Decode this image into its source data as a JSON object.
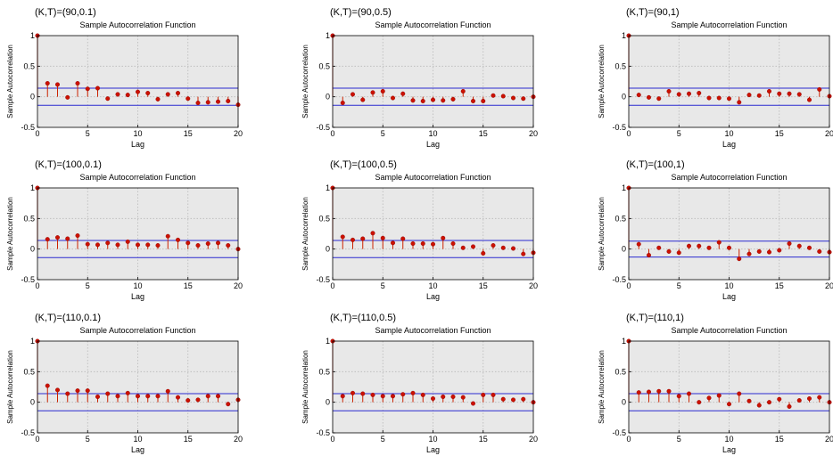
{
  "figure": {
    "background": "#ffffff"
  },
  "style": {
    "panel_bg": "#e8e8e8",
    "grid_color": "#b8b8b8",
    "stem_color": "#cc2200",
    "marker_fill": "#cc1100",
    "bound_color": "#2a2ad0",
    "axis_color": "#000000",
    "text_color": "#000000"
  },
  "chart_data": [
    {
      "type": "stem",
      "label": "(K,T)=(90,0.1)",
      "title": "Sample Autocorrelation Function",
      "xlabel": "Lag",
      "ylabel": "Sample Autocorrelation",
      "xlim": [
        0,
        20
      ],
      "ylim": [
        -0.5,
        1
      ],
      "xticks": [
        0,
        5,
        10,
        15,
        20
      ],
      "yticks": [
        -0.5,
        0,
        0.5,
        1
      ],
      "yticklabels": [
        "-0.5",
        "0",
        "0.5",
        "1"
      ],
      "bounds": [
        0.14,
        -0.14
      ],
      "grid": true,
      "lags": [
        0,
        1,
        2,
        3,
        4,
        5,
        6,
        7,
        8,
        9,
        10,
        11,
        12,
        13,
        14,
        15,
        16,
        17,
        18,
        19,
        20
      ],
      "values": [
        1,
        0.22,
        0.2,
        -0.01,
        0.22,
        0.13,
        0.14,
        -0.03,
        0.04,
        0.03,
        0.08,
        0.06,
        -0.04,
        0.04,
        0.06,
        -0.03,
        -0.1,
        -0.09,
        -0.08,
        -0.07,
        -0.13
      ]
    },
    {
      "type": "stem",
      "label": "(K,T)=(90,0.5)",
      "title": "Sample Autocorrelation Function",
      "xlabel": "Lag",
      "ylabel": "Sample Autocorrelation",
      "xlim": [
        0,
        20
      ],
      "ylim": [
        -0.5,
        1
      ],
      "xticks": [
        0,
        5,
        10,
        15,
        20
      ],
      "yticks": [
        -0.5,
        0,
        0.5,
        1
      ],
      "yticklabels": [
        "-0.5",
        "0",
        "0.5",
        "1"
      ],
      "bounds": [
        0.14,
        -0.14
      ],
      "grid": true,
      "lags": [
        0,
        1,
        2,
        3,
        4,
        5,
        6,
        7,
        8,
        9,
        10,
        11,
        12,
        13,
        14,
        15,
        16,
        17,
        18,
        19,
        20
      ],
      "values": [
        1,
        -0.1,
        0.04,
        -0.05,
        0.07,
        0.09,
        -0.02,
        0.05,
        -0.06,
        -0.07,
        -0.05,
        -0.06,
        -0.04,
        0.09,
        -0.07,
        -0.07,
        0.02,
        0.01,
        -0.02,
        -0.03,
        0.0
      ]
    },
    {
      "type": "stem",
      "label": "(K,T)=(90,1)",
      "title": "Sample Autocorrelation Function",
      "xlabel": "Lag",
      "ylabel": "Sample Autocorrelation",
      "xlim": [
        0,
        20
      ],
      "ylim": [
        -0.5,
        1
      ],
      "xticks": [
        0,
        5,
        10,
        15,
        20
      ],
      "yticks": [
        -0.5,
        0,
        0.5,
        1
      ],
      "yticklabels": [
        "-0.5",
        "0",
        "0.5",
        "1"
      ],
      "bounds": [
        0.14,
        -0.14
      ],
      "grid": true,
      "lags": [
        0,
        1,
        2,
        3,
        4,
        5,
        6,
        7,
        8,
        9,
        10,
        11,
        12,
        13,
        14,
        15,
        16,
        17,
        18,
        19,
        20
      ],
      "values": [
        1,
        0.03,
        -0.01,
        -0.03,
        0.09,
        0.04,
        0.05,
        0.06,
        -0.02,
        -0.02,
        -0.03,
        -0.09,
        0.03,
        0.02,
        0.09,
        0.05,
        0.05,
        0.04,
        -0.05,
        0.12,
        0.01
      ]
    },
    {
      "type": "stem",
      "label": "(K,T)=(100,0.1)",
      "title": "Sample Autocorrelation Function",
      "xlabel": "Lag",
      "ylabel": "Sample Autocorrelation",
      "xlim": [
        0,
        20
      ],
      "ylim": [
        -0.5,
        1
      ],
      "xticks": [
        0,
        5,
        10,
        15,
        20
      ],
      "yticks": [
        -0.5,
        0,
        0.5,
        1
      ],
      "yticklabels": [
        "-0.5",
        "0",
        "0.5",
        "1"
      ],
      "bounds": [
        0.14,
        -0.14
      ],
      "grid": true,
      "lags": [
        0,
        1,
        2,
        3,
        4,
        5,
        6,
        7,
        8,
        9,
        10,
        11,
        12,
        13,
        14,
        15,
        16,
        17,
        18,
        19,
        20
      ],
      "values": [
        1,
        0.16,
        0.19,
        0.17,
        0.22,
        0.08,
        0.07,
        0.1,
        0.07,
        0.12,
        0.07,
        0.07,
        0.06,
        0.21,
        0.15,
        0.1,
        0.06,
        0.09,
        0.1,
        0.06,
        0.0
      ]
    },
    {
      "type": "stem",
      "label": "(K,T)=(100,0.5)",
      "title": "Sample Autocorrelation Function",
      "xlabel": "Lag",
      "ylabel": "Sample Autocorrelation",
      "xlim": [
        0,
        20
      ],
      "ylim": [
        -0.5,
        1
      ],
      "xticks": [
        0,
        5,
        10,
        15,
        20
      ],
      "yticks": [
        -0.5,
        0,
        0.5,
        1
      ],
      "yticklabels": [
        "-0.5",
        "0",
        "0.5",
        "1"
      ],
      "bounds": [
        0.14,
        -0.14
      ],
      "grid": true,
      "lags": [
        0,
        1,
        2,
        3,
        4,
        5,
        6,
        7,
        8,
        9,
        10,
        11,
        12,
        13,
        14,
        15,
        16,
        17,
        18,
        19,
        20
      ],
      "values": [
        1,
        0.2,
        0.15,
        0.17,
        0.26,
        0.18,
        0.1,
        0.17,
        0.09,
        0.09,
        0.08,
        0.18,
        0.09,
        0.02,
        0.04,
        -0.07,
        0.06,
        0.02,
        0.01,
        -0.08,
        -0.06
      ]
    },
    {
      "type": "stem",
      "label": "(K,T)=(100,1)",
      "title": "Sample Autocorrelation Function",
      "xlabel": "Lag",
      "ylabel": "Sample Autocorrelation",
      "xlim": [
        0,
        20
      ],
      "ylim": [
        -0.5,
        1
      ],
      "xticks": [
        0,
        5,
        10,
        15,
        20
      ],
      "yticks": [
        -0.5,
        0,
        0.5,
        1
      ],
      "yticklabels": [
        "-0.5",
        "0",
        "0.5",
        "1"
      ],
      "bounds": [
        0.13,
        -0.13
      ],
      "grid": true,
      "lags": [
        0,
        1,
        2,
        3,
        4,
        5,
        6,
        7,
        8,
        9,
        10,
        11,
        12,
        13,
        14,
        15,
        16,
        17,
        18,
        19,
        20
      ],
      "values": [
        1,
        0.08,
        -0.1,
        0.02,
        -0.04,
        -0.06,
        0.05,
        0.05,
        0.02,
        0.11,
        0.02,
        -0.16,
        -0.08,
        -0.04,
        -0.05,
        -0.02,
        0.09,
        0.05,
        0.02,
        -0.04,
        -0.05
      ]
    },
    {
      "type": "stem",
      "label": "(K,T)=(110,0.1)",
      "title": "Sample Autocorrelation Function",
      "xlabel": "Lag",
      "ylabel": "Sample Autocorrelation",
      "xlim": [
        0,
        20
      ],
      "ylim": [
        -0.5,
        1
      ],
      "xticks": [
        0,
        5,
        10,
        15,
        20
      ],
      "yticks": [
        -0.5,
        0,
        0.5,
        1
      ],
      "yticklabels": [
        "-0.5",
        "0",
        "0.5",
        "1"
      ],
      "bounds": [
        0.14,
        -0.14
      ],
      "grid": true,
      "lags": [
        0,
        1,
        2,
        3,
        4,
        5,
        6,
        7,
        8,
        9,
        10,
        11,
        12,
        13,
        14,
        15,
        16,
        17,
        18,
        19,
        20
      ],
      "values": [
        1,
        0.27,
        0.2,
        0.14,
        0.19,
        0.19,
        0.09,
        0.14,
        0.1,
        0.15,
        0.1,
        0.1,
        0.1,
        0.18,
        0.08,
        0.03,
        0.04,
        0.1,
        0.1,
        -0.03,
        0.04
      ]
    },
    {
      "type": "stem",
      "label": "(K,T)=(110,0.5)",
      "title": "Sample Autocorrelation Function",
      "xlabel": "Lag",
      "ylabel": "Sample Autocorrelation",
      "xlim": [
        0,
        20
      ],
      "ylim": [
        -0.5,
        1
      ],
      "xticks": [
        0,
        5,
        10,
        15,
        20
      ],
      "yticks": [
        -0.5,
        0,
        0.5,
        1
      ],
      "yticklabels": [
        "-0.5",
        "0",
        "0.5",
        "1"
      ],
      "bounds": [
        0.14,
        -0.14
      ],
      "grid": true,
      "lags": [
        0,
        1,
        2,
        3,
        4,
        5,
        6,
        7,
        8,
        9,
        10,
        11,
        12,
        13,
        14,
        15,
        16,
        17,
        18,
        19,
        20
      ],
      "values": [
        1,
        0.1,
        0.15,
        0.14,
        0.12,
        0.1,
        0.1,
        0.13,
        0.15,
        0.12,
        0.06,
        0.09,
        0.09,
        0.08,
        -0.02,
        0.12,
        0.12,
        0.05,
        0.04,
        0.05,
        0.0
      ]
    },
    {
      "type": "stem",
      "label": "(K,T)=(110,1)",
      "title": "Sample Autocorrelation Function",
      "xlabel": "Lag",
      "ylabel": "Sample Autocorrelation",
      "xlim": [
        0,
        20
      ],
      "ylim": [
        -0.5,
        1
      ],
      "xticks": [
        0,
        5,
        10,
        15,
        20
      ],
      "yticks": [
        -0.5,
        0,
        0.5,
        1
      ],
      "yticklabels": [
        "-0.5",
        "0",
        "0.5",
        "1"
      ],
      "bounds": [
        0.14,
        -0.14
      ],
      "grid": true,
      "lags": [
        0,
        1,
        2,
        3,
        4,
        5,
        6,
        7,
        8,
        9,
        10,
        11,
        12,
        13,
        14,
        15,
        16,
        17,
        18,
        19,
        20
      ],
      "values": [
        1,
        0.16,
        0.17,
        0.18,
        0.18,
        0.1,
        0.14,
        0.0,
        0.07,
        0.11,
        -0.03,
        0.14,
        0.02,
        -0.05,
        0.0,
        0.05,
        -0.07,
        0.03,
        0.06,
        0.08,
        0.0
      ]
    }
  ]
}
